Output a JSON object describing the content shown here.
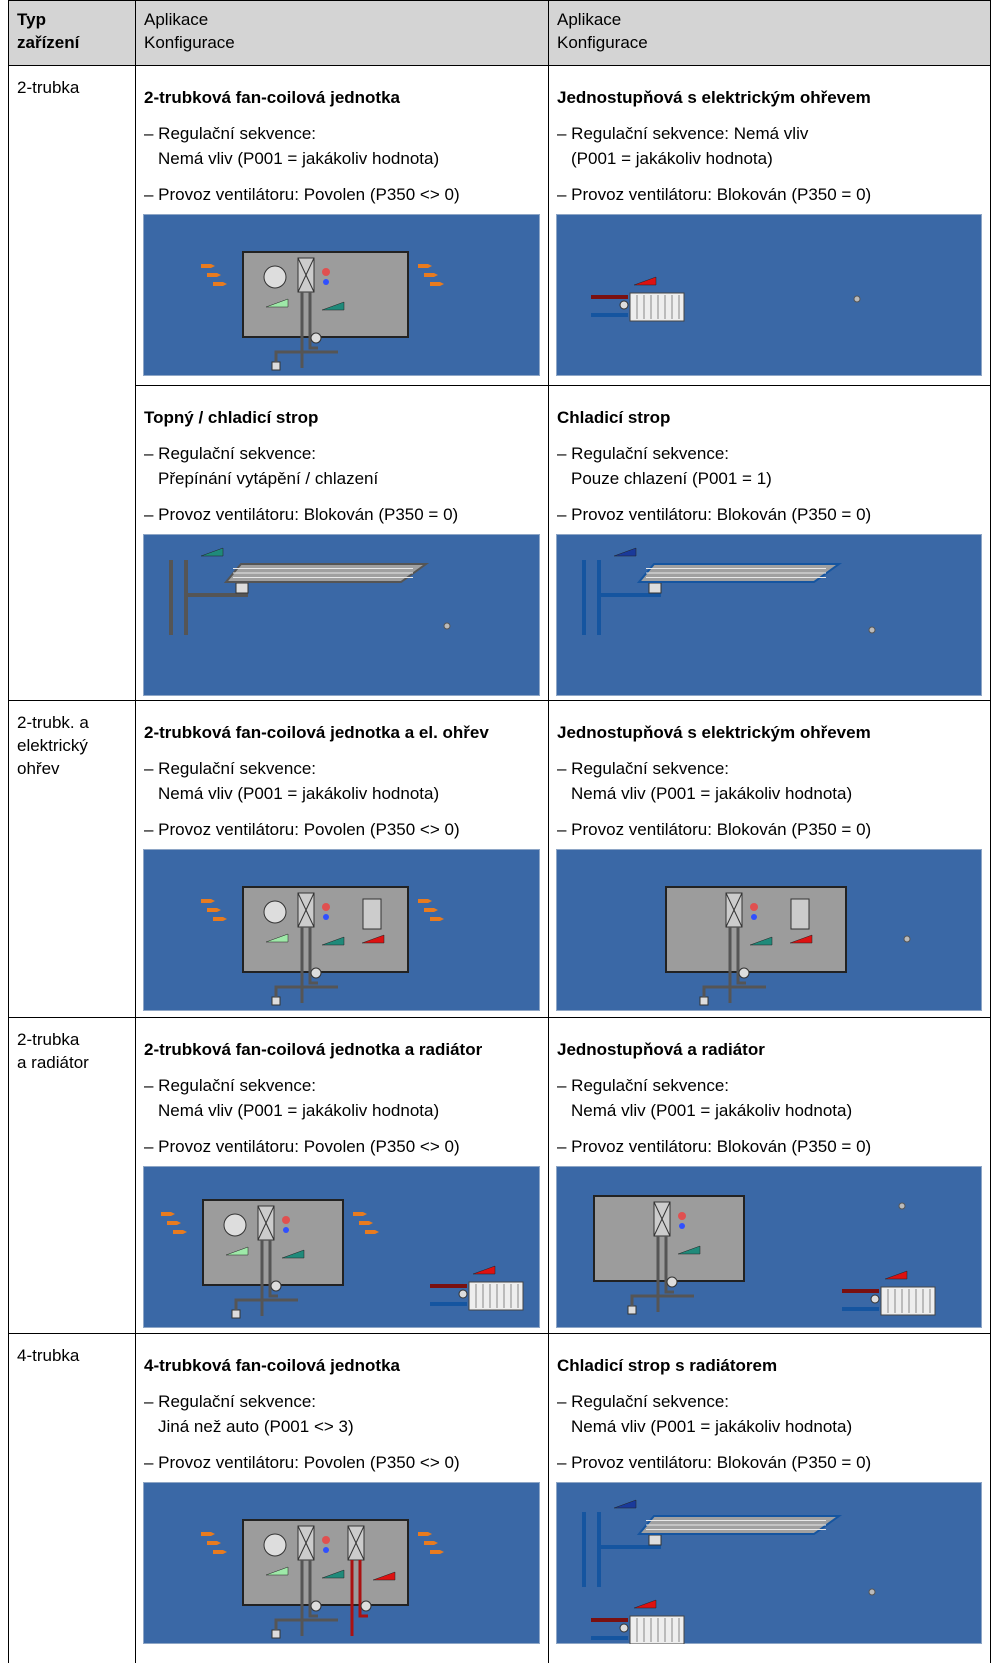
{
  "header": {
    "type": [
      "Typ",
      "zařízení"
    ],
    "app1": [
      "Aplikace",
      "Konfigurace"
    ],
    "app2": [
      "Aplikace",
      "Konfigurace"
    ]
  },
  "rows": [
    {
      "type": [
        "2-trubka"
      ],
      "configs": [
        [
          {
            "title": "2-trubková fan-coilová jednotka",
            "sequence": [
              "– Regulační sekvence:",
              "Nemá vliv (P001 = jakákoliv hodnota)"
            ],
            "fan": "– Provoz ventilátoru: Povolen (P350 <> 0)"
          },
          {
            "title": "Jednostupňová s elektrickým ohřevem",
            "sequence": [
              "– Regulační sekvence: Nemá vliv",
              "(P001 = jakákoliv hodnota)"
            ],
            "fan": "– Provoz ventilátoru: Blokován (P350 = 0)"
          }
        ],
        [
          {
            "title": "Topný / chladicí strop",
            "sequence": [
              "– Regulační sekvence:",
              "Přepínání vytápění / chlazení"
            ],
            "fan": "– Provoz ventilátoru: Blokován (P350 = 0)"
          },
          {
            "title": "Chladicí strop",
            "sequence": [
              "– Regulační sekvence:",
              "Pouze chlazení (P001 = 1)"
            ],
            "fan": "– Provoz ventilátoru: Blokován (P350 = 0)"
          }
        ]
      ]
    },
    {
      "type": [
        "2-trubk. a",
        "elektrický",
        "ohřev"
      ],
      "configs": [
        [
          {
            "title": "2-trubková fan-coilová jednotka a el. ohřev",
            "sequence": [
              "– Regulační sekvence:",
              "Nemá vliv (P001 = jakákoliv hodnota)"
            ],
            "fan": "– Provoz ventilátoru: Povolen (P350 <> 0)"
          },
          {
            "title": "Jednostupňová s elektrickým ohřevem",
            "sequence": [
              "– Regulační sekvence:",
              "Nemá vliv (P001 = jakákoliv hodnota)"
            ],
            "fan": "– Provoz ventilátoru: Blokován (P350 = 0)"
          }
        ]
      ]
    },
    {
      "type": [
        "2-trubka",
        "a radiátor"
      ],
      "configs": [
        [
          {
            "title": "2-trubková fan-coilová jednotka a radiátor",
            "sequence": [
              "– Regulační sekvence:",
              "Nemá vliv (P001 = jakákoliv hodnota)"
            ],
            "fan": "– Provoz ventilátoru: Povolen (P350 <> 0)"
          },
          {
            "title": "Jednostupňová a radiátor",
            "sequence": [
              "– Regulační sekvence:",
              "Nemá vliv (P001 = jakákoliv hodnota)"
            ],
            "fan": "– Provoz ventilátoru: Blokován (P350 = 0)"
          }
        ]
      ]
    },
    {
      "type": [
        "4-trubka"
      ],
      "configs": [
        [
          {
            "title": "4-trubková fan-coilová jednotka",
            "sequence": [
              "– Regulační sekvence:",
              "Jiná než auto (P001 <> 3)"
            ],
            "fan": "– Provoz ventilátoru: Povolen (P350 <> 0)"
          },
          {
            "title": "Chladicí strop s radiátorem",
            "sequence": [
              "– Regulační sekvence:",
              "Nemá vliv (P001 = jakákoliv hodnota)"
            ],
            "fan": "– Provoz ventilátoru: Blokován (P350 = 0)"
          }
        ]
      ]
    }
  ]
}
